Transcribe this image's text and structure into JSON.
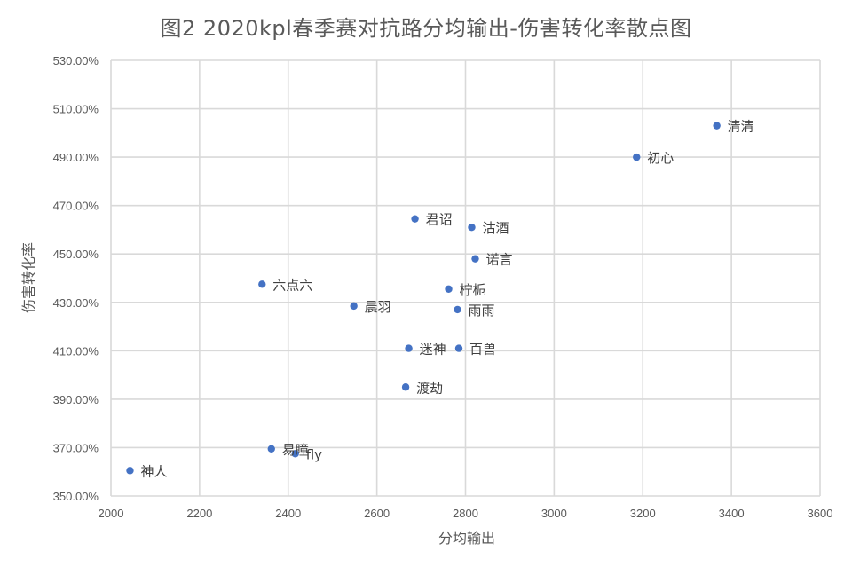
{
  "chart_data": {
    "type": "scatter",
    "title": "图2 2020kpl春季赛对抗路分均输出-伤害转化率散点图",
    "xlabel": "分均输出",
    "ylabel": "伤害转化率",
    "xlim": [
      2000,
      3600
    ],
    "ylim": [
      350,
      530
    ],
    "x_ticks": [
      2000,
      2200,
      2400,
      2600,
      2800,
      3000,
      3200,
      3400,
      3600
    ],
    "y_ticks": [
      350,
      370,
      390,
      410,
      430,
      450,
      470,
      490,
      510,
      530
    ],
    "y_tick_labels": [
      "350.00%",
      "370.00%",
      "390.00%",
      "410.00%",
      "430.00%",
      "450.00%",
      "470.00%",
      "490.00%",
      "510.00%",
      "530.00%"
    ],
    "grid": true,
    "marker_color": "#4472c4",
    "points": [
      {
        "label": "清清",
        "x": 3367,
        "y": 503
      },
      {
        "label": "初心",
        "x": 3186,
        "y": 490
      },
      {
        "label": "君诏",
        "x": 2686,
        "y": 464.5
      },
      {
        "label": "沽酒",
        "x": 2814,
        "y": 461
      },
      {
        "label": "诺言",
        "x": 2822,
        "y": 448
      },
      {
        "label": "六点六",
        "x": 2341,
        "y": 437.5
      },
      {
        "label": "柠栀",
        "x": 2762,
        "y": 435.5
      },
      {
        "label": "晨羽",
        "x": 2548,
        "y": 428.5
      },
      {
        "label": "雨雨",
        "x": 2782,
        "y": 427
      },
      {
        "label": "迷神",
        "x": 2672,
        "y": 411
      },
      {
        "label": "百兽",
        "x": 2785,
        "y": 411
      },
      {
        "label": "渡劫",
        "x": 2665,
        "y": 395
      },
      {
        "label": "易瞳",
        "x": 2362,
        "y": 369.5
      },
      {
        "label": "fly",
        "x": 2416,
        "y": 367.5
      },
      {
        "label": "神人",
        "x": 2043,
        "y": 360.5
      }
    ]
  }
}
